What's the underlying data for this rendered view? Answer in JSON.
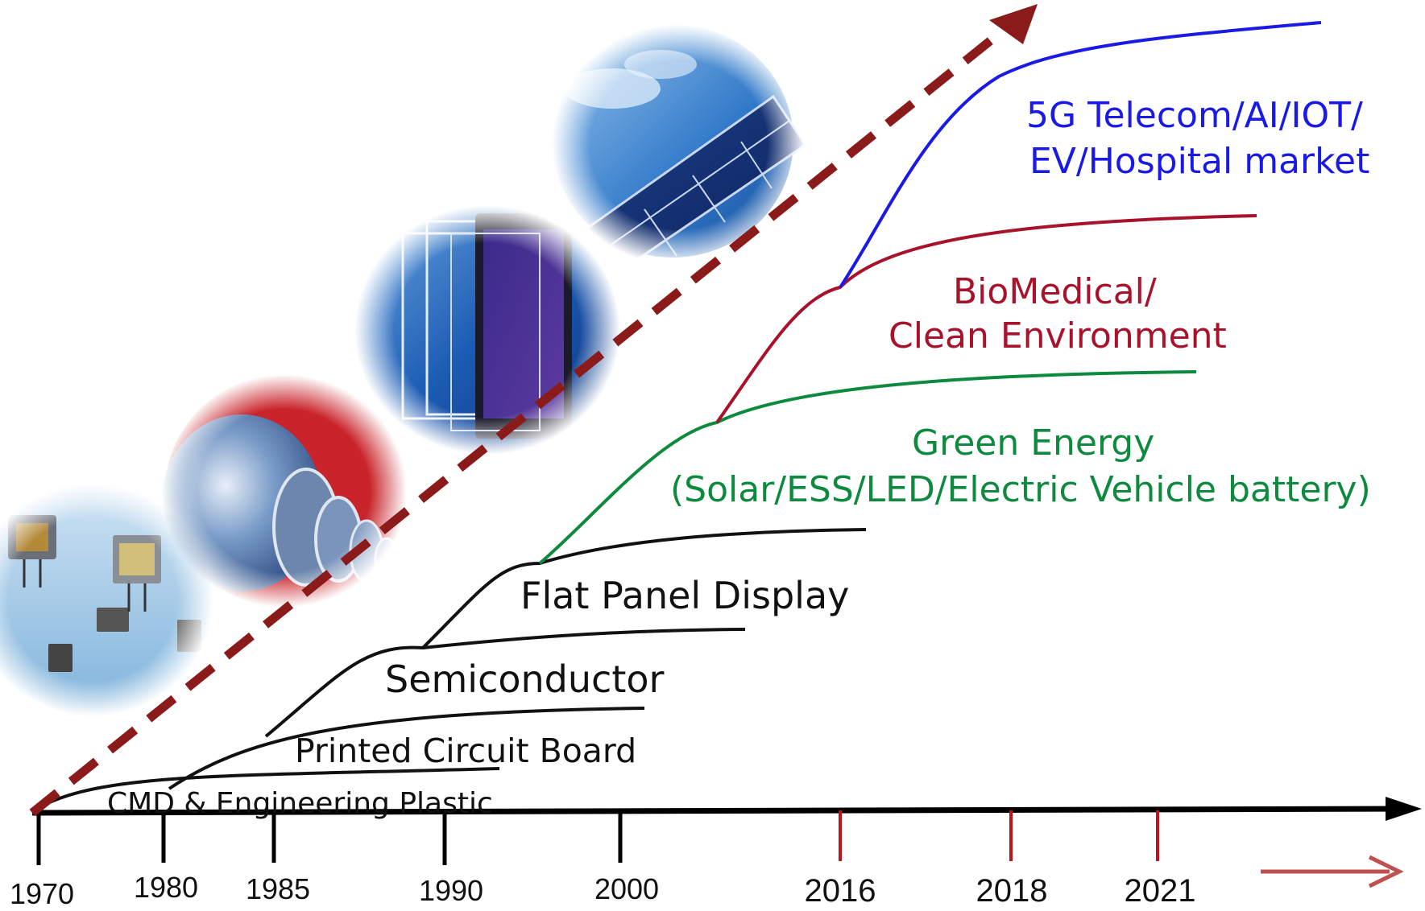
{
  "timeline": {
    "years": [
      {
        "label": "1970",
        "highlight": false
      },
      {
        "label": "1980",
        "highlight": false
      },
      {
        "label": "1985",
        "highlight": false
      },
      {
        "label": "1990",
        "highlight": false
      },
      {
        "label": "2000",
        "highlight": false
      },
      {
        "label": "2016",
        "highlight": true
      },
      {
        "label": "2018",
        "highlight": true
      },
      {
        "label": "2021",
        "highlight": true
      }
    ]
  },
  "stages": {
    "cmd": "CMD & Engineering Plastic",
    "pcb": "Printed Circuit Board",
    "semi": "Semiconductor",
    "fpd": "Flat Panel Display",
    "green_1": "Green Energy",
    "green_2": "(Solar/ESS/LED/Electric Vehicle battery)",
    "bio_1": "BioMedical/",
    "bio_2": "Clean Environment",
    "telecom_1": "5G Telecom/AI/IOT/",
    "telecom_2": "EV/Hospital market"
  },
  "colors": {
    "black": "#111111",
    "green": "#0e8a3e",
    "red": "#a8122a",
    "blue": "#1a1ae6",
    "trend_arrow": "#8b1a1a",
    "highlight_tick": "#c0141c",
    "future_arrow": "#c0504d"
  },
  "images": [
    "electronic-components-image",
    "silicon-wafers-image",
    "display-panels-image",
    "solar-panel-image"
  ]
}
